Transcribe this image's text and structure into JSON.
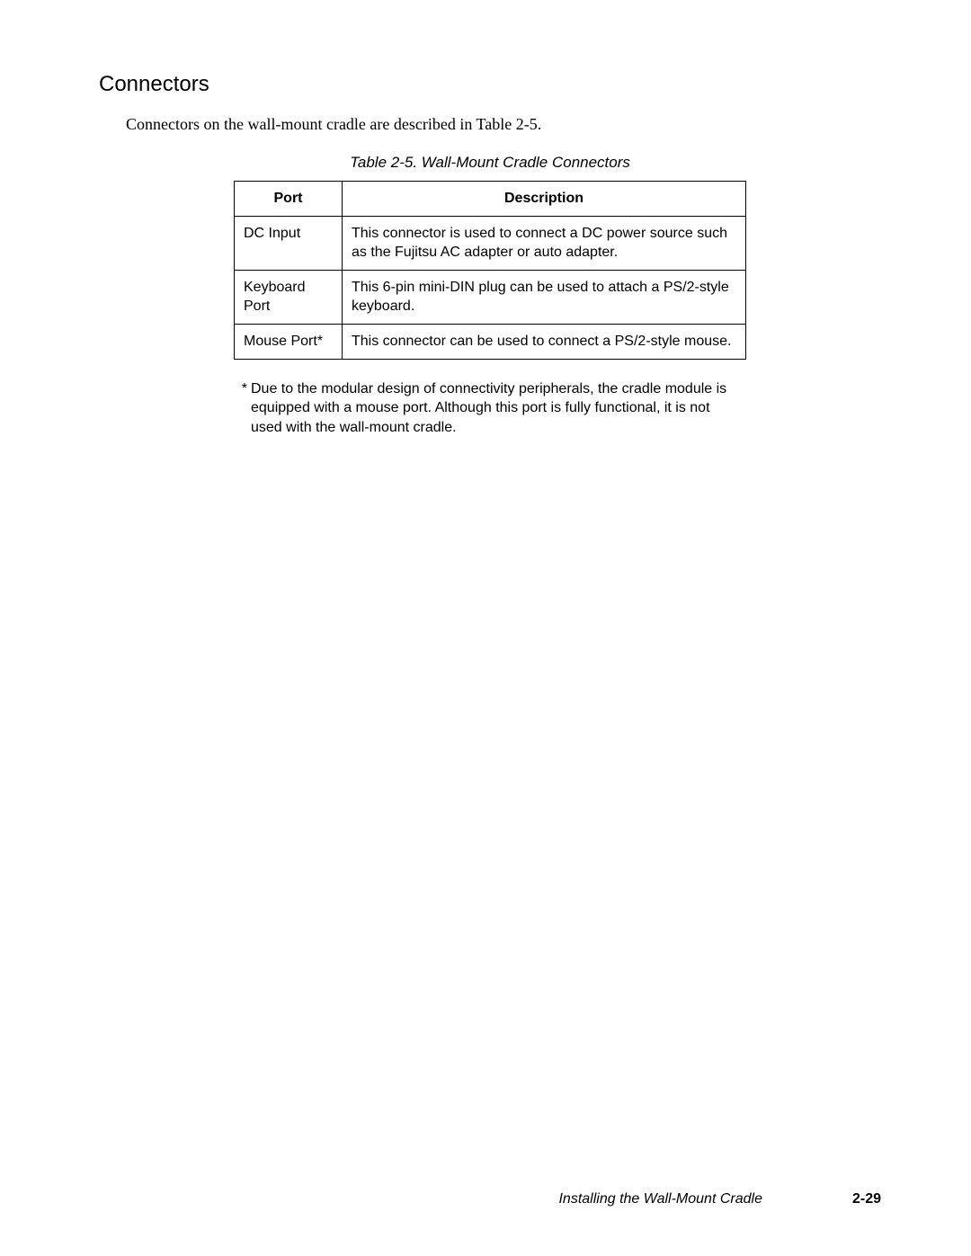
{
  "section_title": "Connectors",
  "intro_text": "Connectors on the wall-mount cradle are described in Table 2-5.",
  "table": {
    "caption": "Table 2-5.  Wall-Mount Cradle Connectors",
    "headers": {
      "port": "Port",
      "description": "Description"
    },
    "rows": [
      {
        "port": "DC Input",
        "description": "This connector is used to connect a DC power source such as the Fujitsu AC adapter or auto adapter."
      },
      {
        "port": "Keyboard Port",
        "description": "This 6-pin mini-DIN plug can be used to attach a PS/2-style keyboard."
      },
      {
        "port": "Mouse Port*",
        "description": "This connector can be used to connect a PS/2-style mouse."
      }
    ]
  },
  "footnote": {
    "marker": "*",
    "text": "Due to the modular design of connectivity peripherals, the cradle module is equipped with a mouse port. Although this port is fully functional, it is not used with the wall-mount cradle."
  },
  "footer": {
    "running_title": "Installing the Wall-Mount Cradle",
    "page_number": "2-29"
  },
  "colors": {
    "text": "#000000",
    "border": "#000000",
    "background": "#ffffff"
  },
  "fonts": {
    "heading_family": "Arial",
    "body_serif_family": "Palatino",
    "table_family": "Arial",
    "heading_size_pt": 18,
    "serif_body_size_pt": 13,
    "table_size_pt": 12,
    "caption_size_pt": 12,
    "footnote_size_pt": 12,
    "footer_size_pt": 12
  }
}
